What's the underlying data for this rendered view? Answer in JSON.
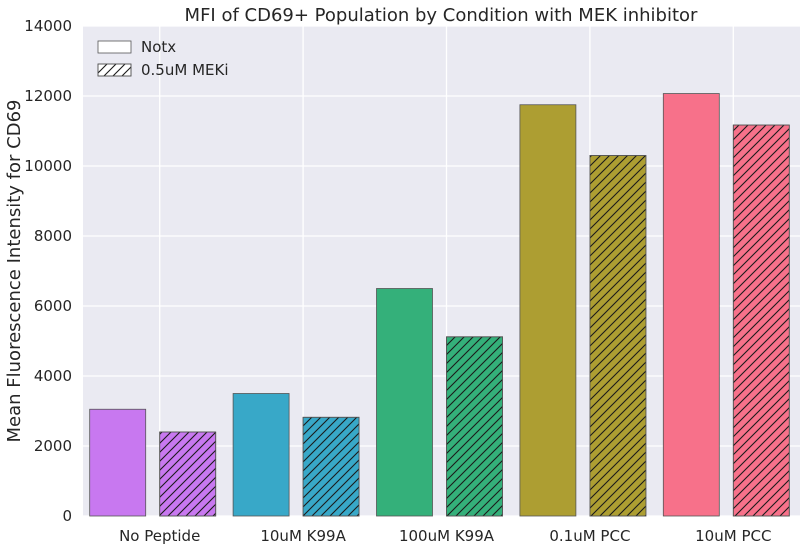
{
  "chart_data": {
    "type": "bar",
    "title": "MFI of CD69+ Population by Condition with MEK inhibitor",
    "xlabel": "",
    "ylabel": "Mean Fluorescence Intensity for CD69",
    "ylim": [
      0,
      14000
    ],
    "yticks": [
      0,
      2000,
      4000,
      6000,
      8000,
      10000,
      12000,
      14000
    ],
    "grid": true,
    "legend_position": "top-left",
    "categories": [
      "No Peptide",
      "10uM K99A",
      "100uM K99A",
      "0.1uM PCC",
      "10uM PCC"
    ],
    "category_colors": [
      "#c878f0",
      "#38a8c8",
      "#34b07a",
      "#ad9e32",
      "#f7718a"
    ],
    "series": [
      {
        "name": "Notx",
        "hatch": false,
        "values": [
          3050,
          3500,
          6500,
          11750,
          12070
        ]
      },
      {
        "name": "0.5uM MEKi",
        "hatch": true,
        "values": [
          2400,
          2820,
          5120,
          10300,
          11170
        ]
      }
    ]
  }
}
